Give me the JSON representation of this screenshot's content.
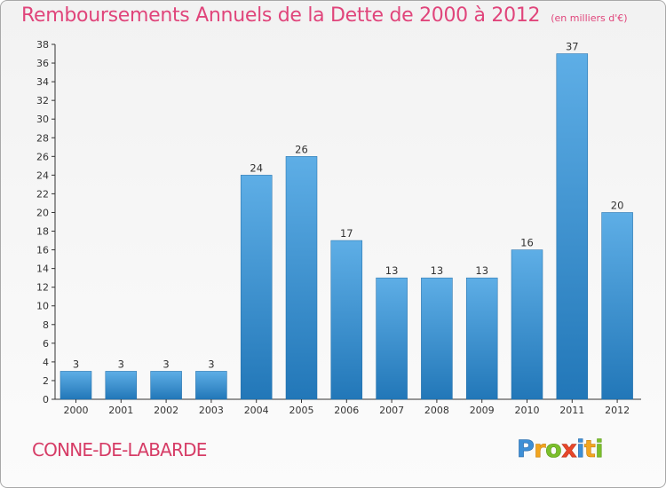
{
  "title": "Remboursements Annuels de la Dette de 2000 à 2012",
  "subtitle": "(en milliers d'€)",
  "place": "CONNE-DE-LABARDE",
  "logo_text": "Proxiti",
  "colors": {
    "title": "#e0457b",
    "bar_light": "#5eaee6",
    "bar_dark": "#2277b8",
    "axis": "#333333"
  },
  "chart_data": {
    "type": "bar",
    "title": "Remboursements Annuels de la Dette de 2000 à 2012",
    "subtitle": "(en milliers d'€)",
    "categories": [
      "2000",
      "2001",
      "2002",
      "2003",
      "2004",
      "2005",
      "2006",
      "2007",
      "2008",
      "2009",
      "2010",
      "2011",
      "2012"
    ],
    "values": [
      3,
      3,
      3,
      3,
      24,
      26,
      17,
      13,
      13,
      13,
      16,
      37,
      20
    ],
    "value_labels": [
      "3",
      "3",
      "3",
      "3",
      "24",
      "26",
      "17",
      "13",
      "13",
      "13",
      "16",
      "37",
      "20"
    ],
    "ylim": [
      0,
      38
    ],
    "yticks": [
      0,
      2,
      4,
      6,
      8,
      10,
      12,
      14,
      16,
      18,
      20,
      22,
      24,
      26,
      28,
      30,
      32,
      34,
      36,
      38
    ],
    "xlabel": "",
    "ylabel": "",
    "grid": false,
    "legend": "none"
  }
}
